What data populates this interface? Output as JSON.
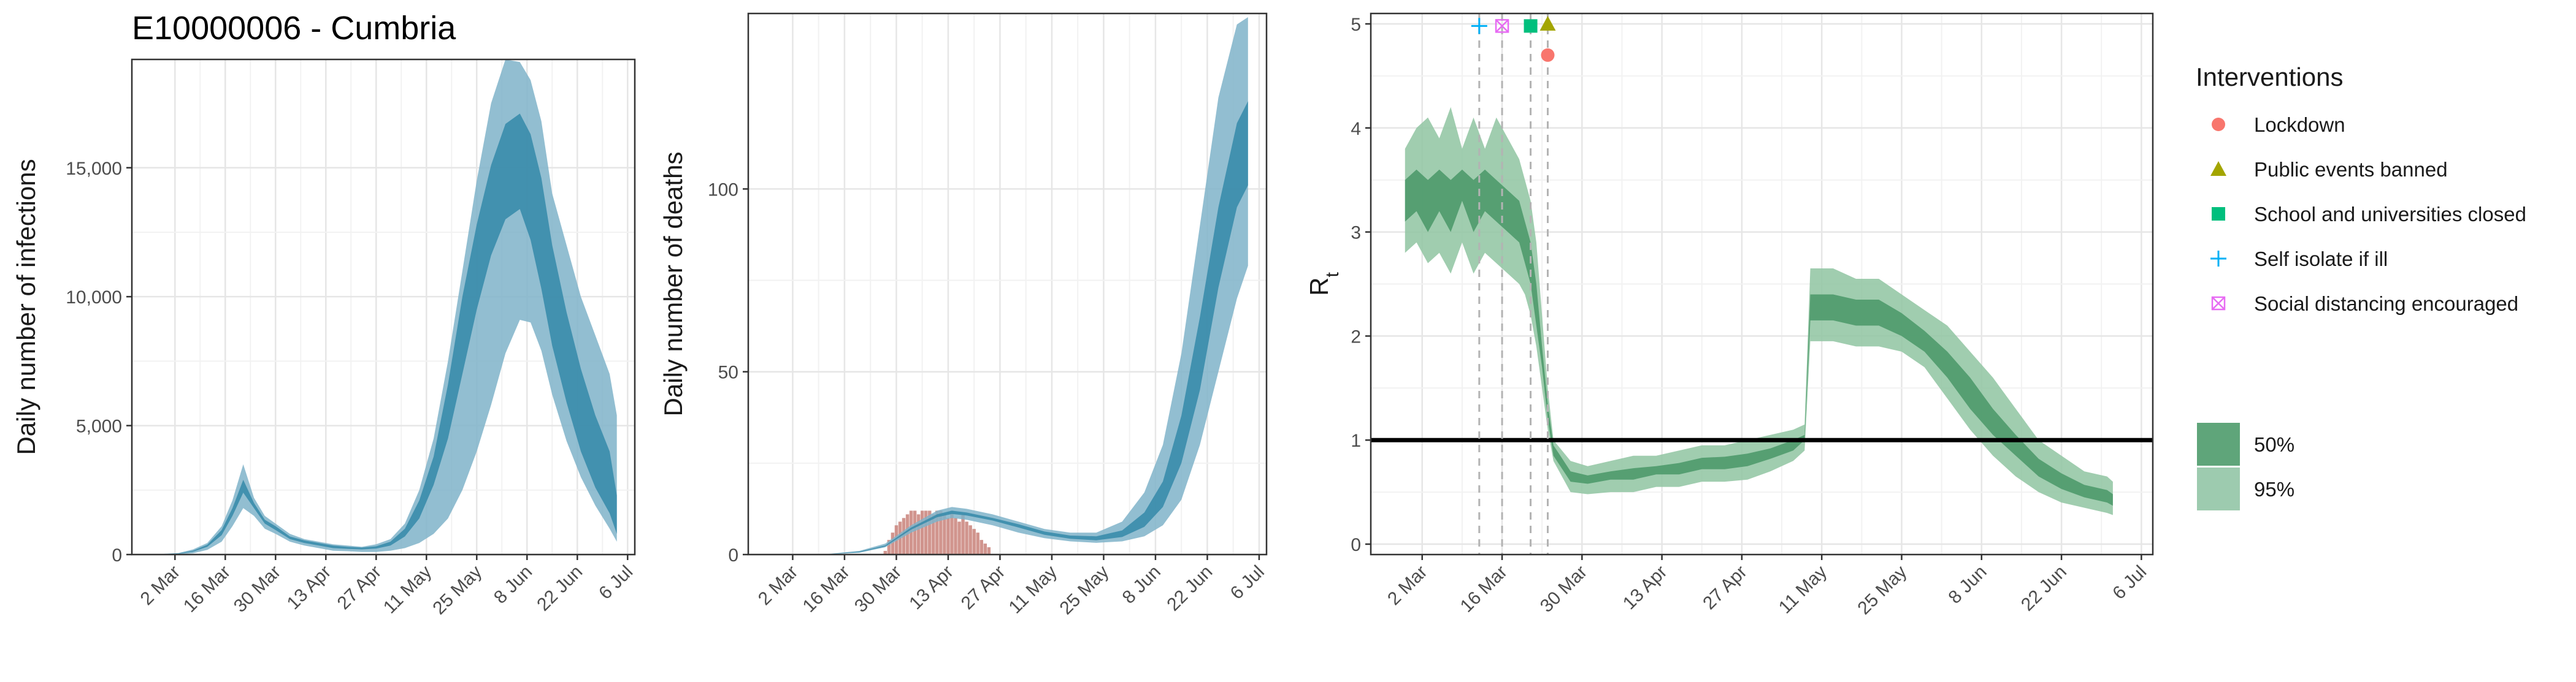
{
  "title": "E10000006 - Cumbria",
  "colors": {
    "infection_inner": "#3a8cab",
    "infection_outer": "#7fb3c9",
    "infection_line": "#2f7fa0",
    "deaths_bar": "#c9837a",
    "rt_inner": "#4e9a6b",
    "rt_outer": "#8fc4a1",
    "ref_line": "#000000",
    "lockdown": "#f8766d",
    "events": "#a3a500",
    "schools": "#00bf7d",
    "self_isolate": "#00b0f6",
    "social_distancing": "#e76bf3"
  },
  "chart_data": [
    {
      "type": "area",
      "title": "E10000006 - Cumbria",
      "xlabel": "",
      "ylabel": "Daily number of infections",
      "x_ticks": [
        "2 Mar",
        "16 Mar",
        "30 Mar",
        "13 Apr",
        "27 Apr",
        "11 May",
        "25 May",
        "8 Jun",
        "22 Jun",
        "6 Jul"
      ],
      "y_ticks": [
        "0",
        "5,000",
        "10,000",
        "15,000"
      ],
      "xlim": [
        "2020-02-19",
        "2020-07-08"
      ],
      "ylim": [
        0,
        19200
      ],
      "grid": true,
      "x": [
        "2020-02-28",
        "2020-03-03",
        "2020-03-07",
        "2020-03-11",
        "2020-03-15",
        "2020-03-18",
        "2020-03-21",
        "2020-03-24",
        "2020-03-27",
        "2020-03-30",
        "2020-04-03",
        "2020-04-07",
        "2020-04-11",
        "2020-04-15",
        "2020-04-19",
        "2020-04-23",
        "2020-04-27",
        "2020-05-01",
        "2020-05-05",
        "2020-05-09",
        "2020-05-13",
        "2020-05-17",
        "2020-05-21",
        "2020-05-25",
        "2020-05-29",
        "2020-06-02",
        "2020-06-06",
        "2020-06-09",
        "2020-06-12",
        "2020-06-15",
        "2020-06-19",
        "2020-06-23",
        "2020-06-27",
        "2020-07-01",
        "2020-07-03"
      ],
      "series": [
        {
          "band": "outer",
          "lower": [
            0,
            10,
            50,
            180,
            500,
            1100,
            1800,
            1500,
            1000,
            800,
            500,
            350,
            250,
            150,
            130,
            100,
            100,
            150,
            250,
            450,
            800,
            1400,
            2500,
            4000,
            5800,
            7800,
            9100,
            9000,
            7900,
            6200,
            4400,
            3000,
            1900,
            1000,
            500
          ],
          "upper": [
            30,
            60,
            200,
            450,
            1100,
            2100,
            3500,
            2200,
            1500,
            1200,
            800,
            600,
            500,
            400,
            350,
            300,
            400,
            600,
            1200,
            2500,
            4500,
            7500,
            11000,
            14500,
            17500,
            19200,
            19100,
            18400,
            16800,
            14000,
            12000,
            10000,
            8500,
            7000,
            5400
          ]
        },
        {
          "band": "inner",
          "lower": [
            10,
            30,
            110,
            300,
            750,
            1500,
            2400,
            1800,
            1200,
            950,
            600,
            450,
            350,
            250,
            220,
            200,
            230,
            350,
            700,
            1400,
            2700,
            4500,
            7000,
            9500,
            11600,
            13000,
            13400,
            12200,
            10300,
            8100,
            5900,
            4000,
            2600,
            1600,
            800
          ],
          "upper": [
            20,
            45,
            150,
            380,
            950,
            1800,
            2900,
            2000,
            1350,
            1100,
            700,
            550,
            450,
            350,
            300,
            270,
            320,
            500,
            1000,
            2100,
            3800,
            6600,
            10000,
            12800,
            15100,
            16700,
            17100,
            16300,
            14600,
            12000,
            9400,
            7200,
            5400,
            4000,
            2300
          ]
        }
      ]
    },
    {
      "type": "bar",
      "xlabel": "",
      "ylabel": "Daily number of deaths",
      "x_ticks": [
        "2 Mar",
        "16 Mar",
        "30 Mar",
        "13 Apr",
        "27 Apr",
        "11 May",
        "25 May",
        "8 Jun",
        "22 Jun",
        "6 Jul"
      ],
      "y_ticks": [
        "0",
        "50",
        "100"
      ],
      "xlim": [
        "2020-02-19",
        "2020-07-08"
      ],
      "ylim": [
        0,
        148
      ],
      "grid": true,
      "observed_deaths": {
        "start": "2020-03-27",
        "values": [
          1,
          4,
          6,
          8,
          9,
          10,
          11,
          12,
          12,
          11,
          12,
          12,
          12,
          11,
          12,
          12,
          11,
          10,
          12,
          10,
          9,
          11,
          9,
          8,
          7,
          6,
          4,
          3,
          2
        ]
      },
      "x": [
        "2020-03-01",
        "2020-03-10",
        "2020-03-20",
        "2020-03-27",
        "2020-04-03",
        "2020-04-10",
        "2020-04-14",
        "2020-04-18",
        "2020-04-25",
        "2020-05-02",
        "2020-05-09",
        "2020-05-16",
        "2020-05-23",
        "2020-05-30",
        "2020-06-05",
        "2020-06-10",
        "2020-06-15",
        "2020-06-20",
        "2020-06-25",
        "2020-06-30",
        "2020-07-03"
      ],
      "series": [
        {
          "band": "outer",
          "lower": [
            0,
            0,
            0.5,
            2,
            6,
            9,
            10,
            9.5,
            8,
            6,
            4.5,
            3.6,
            3.2,
            3.6,
            5,
            8,
            15,
            30,
            50,
            70,
            79
          ],
          "upper": [
            0,
            0,
            1,
            3,
            8,
            12,
            13,
            12.5,
            11,
            9,
            7,
            6,
            6,
            9,
            17,
            30,
            55,
            90,
            125,
            145,
            147
          ]
        },
        {
          "band": "inner",
          "lower": [
            0,
            0,
            0.6,
            2.2,
            6.8,
            10.2,
            11.1,
            10.7,
            9.3,
            7.4,
            5.4,
            4.3,
            3.9,
            4.8,
            7.6,
            13,
            25,
            45,
            73,
            95,
            101
          ],
          "upper": [
            0,
            0,
            0.8,
            2.5,
            7.4,
            11,
            12,
            11.5,
            10,
            8.3,
            6.3,
            5.2,
            5,
            6.6,
            11.5,
            20,
            38,
            65,
            95,
            118,
            124
          ]
        }
      ]
    },
    {
      "type": "area",
      "xlabel": "",
      "ylabel": "R",
      "ylabel_subscript": "t",
      "x_ticks": [
        "2 Mar",
        "16 Mar",
        "30 Mar",
        "13 Apr",
        "27 Apr",
        "11 May",
        "25 May",
        "8 Jun",
        "22 Jun",
        "6 Jul"
      ],
      "y_ticks": [
        "0",
        "1",
        "2",
        "3",
        "4",
        "5"
      ],
      "xlim": [
        "2020-02-22",
        "2020-07-08"
      ],
      "ylim": [
        -0.1,
        5.1
      ],
      "grid": true,
      "reference_line": 1,
      "x": [
        "2020-02-28",
        "2020-03-01",
        "2020-03-03",
        "2020-03-05",
        "2020-03-07",
        "2020-03-09",
        "2020-03-11",
        "2020-03-13",
        "2020-03-15",
        "2020-03-17",
        "2020-03-19",
        "2020-03-20",
        "2020-03-21",
        "2020-03-22",
        "2020-03-23",
        "2020-03-24",
        "2020-03-25",
        "2020-03-28",
        "2020-03-31",
        "2020-04-04",
        "2020-04-08",
        "2020-04-12",
        "2020-04-16",
        "2020-04-20",
        "2020-04-24",
        "2020-04-28",
        "2020-05-02",
        "2020-05-06",
        "2020-05-08",
        "2020-05-09",
        "2020-05-13",
        "2020-05-17",
        "2020-05-21",
        "2020-05-25",
        "2020-05-29",
        "2020-06-02",
        "2020-06-06",
        "2020-06-10",
        "2020-06-14",
        "2020-06-18",
        "2020-06-22",
        "2020-06-26",
        "2020-06-30",
        "2020-07-01"
      ],
      "series": [
        {
          "band": "outer",
          "lower": [
            2.8,
            2.9,
            2.7,
            2.8,
            2.6,
            2.9,
            2.6,
            2.8,
            2.7,
            2.6,
            2.5,
            2.4,
            2.2,
            1.9,
            1.5,
            1.1,
            0.8,
            0.5,
            0.48,
            0.5,
            0.5,
            0.55,
            0.55,
            0.6,
            0.6,
            0.62,
            0.7,
            0.8,
            0.9,
            1.95,
            1.95,
            1.9,
            1.9,
            1.85,
            1.7,
            1.4,
            1.1,
            0.85,
            0.65,
            0.5,
            0.4,
            0.35,
            0.3,
            0.28
          ],
          "upper": [
            3.8,
            4.0,
            4.1,
            3.9,
            4.2,
            3.8,
            4.1,
            3.8,
            4.1,
            3.9,
            3.7,
            3.5,
            3.3,
            2.9,
            2.2,
            1.5,
            1.0,
            0.8,
            0.75,
            0.8,
            0.85,
            0.85,
            0.9,
            0.95,
            0.95,
            1.0,
            1.05,
            1.1,
            1.15,
            2.65,
            2.65,
            2.55,
            2.55,
            2.4,
            2.25,
            2.1,
            1.85,
            1.6,
            1.3,
            1.0,
            0.85,
            0.7,
            0.65,
            0.6
          ]
        },
        {
          "band": "inner",
          "lower": [
            3.1,
            3.2,
            3.0,
            3.2,
            3.0,
            3.3,
            3.0,
            3.2,
            3.1,
            3.0,
            2.9,
            2.7,
            2.5,
            2.1,
            1.7,
            1.2,
            0.85,
            0.6,
            0.58,
            0.62,
            0.62,
            0.67,
            0.67,
            0.72,
            0.72,
            0.75,
            0.82,
            0.9,
            1.0,
            2.15,
            2.15,
            2.1,
            2.1,
            2.0,
            1.85,
            1.6,
            1.3,
            1.05,
            0.85,
            0.65,
            0.53,
            0.45,
            0.4,
            0.37
          ],
          "upper": [
            3.5,
            3.6,
            3.5,
            3.6,
            3.5,
            3.6,
            3.5,
            3.6,
            3.5,
            3.4,
            3.3,
            3.1,
            2.9,
            2.5,
            1.9,
            1.35,
            0.95,
            0.7,
            0.66,
            0.7,
            0.73,
            0.75,
            0.78,
            0.83,
            0.84,
            0.87,
            0.92,
            1.0,
            1.05,
            2.4,
            2.4,
            2.35,
            2.35,
            2.22,
            2.05,
            1.85,
            1.6,
            1.3,
            1.05,
            0.82,
            0.68,
            0.57,
            0.52,
            0.48
          ]
        }
      ],
      "interventions": [
        {
          "name": "Lockdown",
          "date": "2020-03-24",
          "y": 4.7,
          "shape": "circle",
          "color": "#f8766d"
        },
        {
          "name": "Public events banned",
          "date": "2020-03-24",
          "y": 5.0,
          "shape": "triangle",
          "color": "#a3a500"
        },
        {
          "name": "School and universities closed",
          "date": "2020-03-21",
          "y": 4.98,
          "shape": "square",
          "color": "#00bf7d"
        },
        {
          "name": "Self isolate if ill",
          "date": "2020-03-12",
          "y": 4.98,
          "shape": "plus",
          "color": "#00b0f6"
        },
        {
          "name": "Social distancing encouraged",
          "date": "2020-03-16",
          "y": 4.98,
          "shape": "boxcross",
          "color": "#e76bf3"
        }
      ]
    }
  ],
  "legend": {
    "interventions_title": "Interventions",
    "interventions": [
      {
        "label": "Lockdown",
        "shape": "circle",
        "color": "#f8766d"
      },
      {
        "label": "Public events banned",
        "shape": "triangle",
        "color": "#a3a500"
      },
      {
        "label": "School and universities closed",
        "shape": "square",
        "color": "#00bf7d"
      },
      {
        "label": "Self isolate if ill",
        "shape": "plus",
        "color": "#00b0f6"
      },
      {
        "label": "Social distancing encouraged",
        "shape": "boxcross",
        "color": "#e76bf3"
      }
    ],
    "bands": [
      {
        "label": "50%",
        "color": "#5fa57a"
      },
      {
        "label": "95%",
        "color": "#9dcbaf"
      }
    ]
  }
}
